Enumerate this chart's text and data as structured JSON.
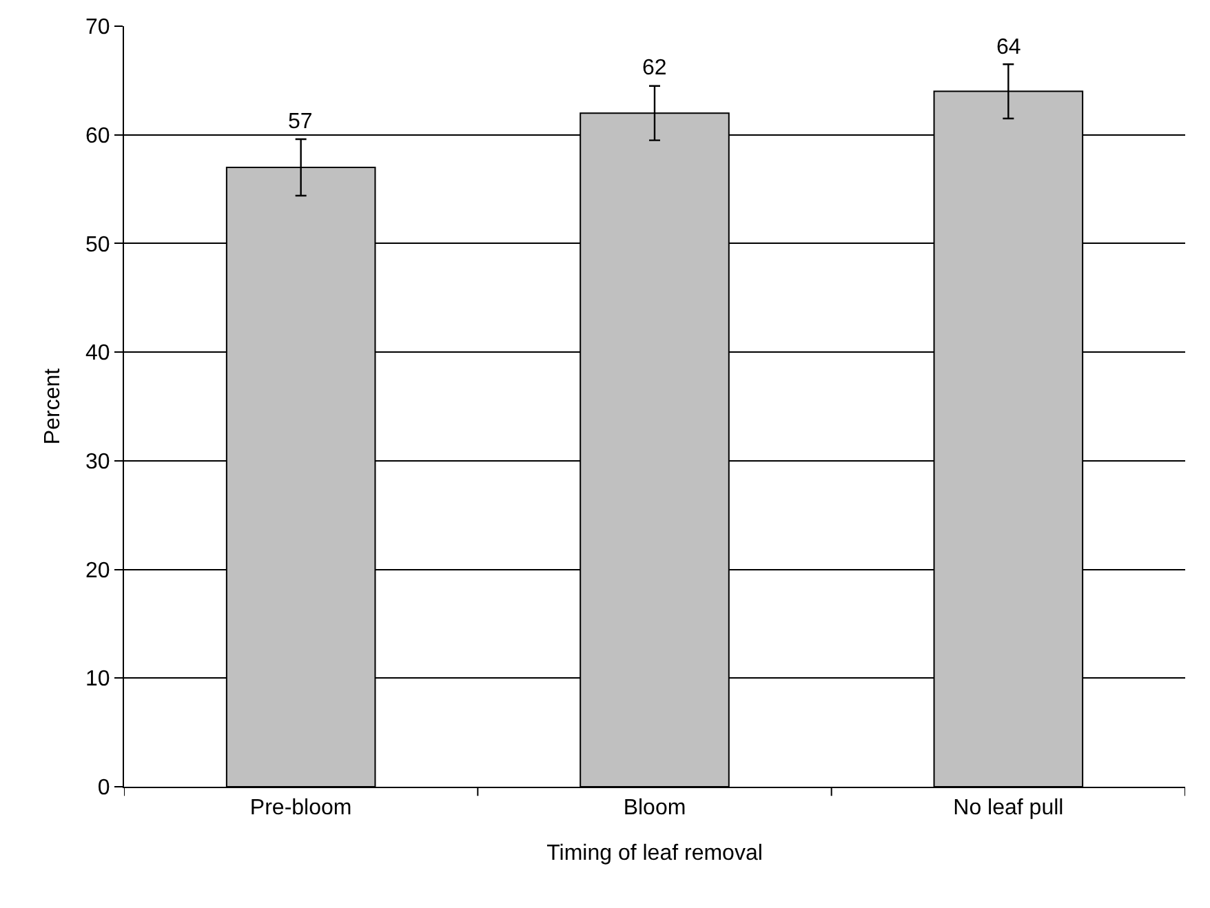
{
  "chart_data": {
    "type": "bar",
    "xlabel": "Timing of leaf removal",
    "ylabel": "Percent",
    "categories": [
      "Pre-bloom",
      "Bloom",
      "No leaf pull"
    ],
    "values": [
      57,
      62,
      64
    ],
    "errors": [
      2.6,
      2.5,
      2.5
    ],
    "color": "#c0c0c0",
    "data_labels": true,
    "ylim": [
      0,
      70
    ],
    "yticks": [
      0,
      10,
      20,
      30,
      40,
      50,
      60,
      70
    ],
    "grid": "y"
  }
}
